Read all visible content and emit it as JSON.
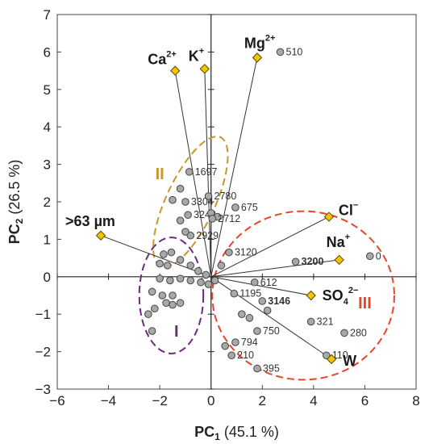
{
  "chart_data": {
    "type": "scatter",
    "subtype": "pca-biplot",
    "xlabel": {
      "main": "PC",
      "sub": "1",
      "rest": " (45.1 %)"
    },
    "ylabel": {
      "main": "PC",
      "sub": "2",
      "rest": " (26.5 %)"
    },
    "xlim": [
      -6,
      8
    ],
    "ylim": [
      -3,
      7
    ],
    "xticks": [
      -6,
      -4,
      -2,
      0,
      2,
      4,
      6,
      8
    ],
    "yticks": [
      -3,
      -2,
      -1,
      0,
      1,
      2,
      3,
      4,
      5,
      6,
      7
    ],
    "grid": false,
    "colors": {
      "point_fill": "#a8a8a8",
      "point_stroke": "#444444",
      "loading_fill": "#f5c400",
      "loading_stroke": "#5a4a00",
      "vector_stroke": "#333333",
      "group_I": "#6b2a7a",
      "group_II": "#c8962a",
      "group_III": "#e8442a"
    },
    "loadings": [
      {
        "name": "Ca",
        "sup": "2+",
        "x": -1.4,
        "y": 5.5
      },
      {
        "name": "K",
        "sup": "+",
        "x": -0.25,
        "y": 5.55
      },
      {
        "name": "Mg",
        "sup": "2+",
        "x": 1.8,
        "y": 5.85
      },
      {
        "name": ">63 µm",
        "sup": "",
        "x": -4.3,
        "y": 1.1
      },
      {
        "name": "Cl",
        "sup": "−",
        "x": 4.6,
        "y": 1.6
      },
      {
        "name": "Na",
        "sup": "+",
        "x": 5.0,
        "y": 0.45
      },
      {
        "name": "SO",
        "sub": "4",
        "sup": "2−",
        "x": 3.9,
        "y": -0.5
      },
      {
        "name": "W",
        "sup": "",
        "x": 4.7,
        "y": -2.2
      }
    ],
    "scores": [
      {
        "x": 2.7,
        "y": 6.0,
        "label": "510"
      },
      {
        "x": -0.85,
        "y": 2.8,
        "label": "1697"
      },
      {
        "x": -0.1,
        "y": 2.15,
        "label": "2780"
      },
      {
        "x": -1.2,
        "y": 2.35
      },
      {
        "x": -1.0,
        "y": 2.0,
        "label": "3304"
      },
      {
        "x": -1.5,
        "y": 2.05
      },
      {
        "x": 0.95,
        "y": 1.85,
        "label": "675"
      },
      {
        "x": -0.9,
        "y": 1.65,
        "label": "3248"
      },
      {
        "x": 0.0,
        "y": 1.7
      },
      {
        "x": 0.25,
        "y": 1.6
      },
      {
        "x": -1.2,
        "y": 1.5
      },
      {
        "x": 0.05,
        "y": 1.55,
        "label": "2712"
      },
      {
        "x": -0.8,
        "y": 1.1,
        "label": "2929"
      },
      {
        "x": -1.0,
        "y": 1.2
      },
      {
        "x": 0.7,
        "y": 0.65,
        "label": "3120"
      },
      {
        "x": -1.55,
        "y": 0.65
      },
      {
        "x": -1.85,
        "y": 0.6
      },
      {
        "x": -1.2,
        "y": 0.45
      },
      {
        "x": -2.0,
        "y": 0.35
      },
      {
        "x": -1.7,
        "y": 0.3
      },
      {
        "x": 0.4,
        "y": 0.3
      },
      {
        "x": -0.8,
        "y": 0.3
      },
      {
        "x": -0.5,
        "y": 0.15
      },
      {
        "x": -0.2,
        "y": 0.05
      },
      {
        "x": -2.0,
        "y": -0.05
      },
      {
        "x": -1.6,
        "y": -0.1
      },
      {
        "x": -1.2,
        "y": -0.05
      },
      {
        "x": -0.8,
        "y": -0.1
      },
      {
        "x": -0.4,
        "y": -0.15
      },
      {
        "x": -0.1,
        "y": -0.2
      },
      {
        "x": -2.3,
        "y": -0.4
      },
      {
        "x": -1.9,
        "y": -0.5
      },
      {
        "x": -1.5,
        "y": -0.5
      },
      {
        "x": -1.75,
        "y": -0.7
      },
      {
        "x": -1.5,
        "y": -0.75
      },
      {
        "x": -1.2,
        "y": -0.7
      },
      {
        "x": -2.2,
        "y": -0.85
      },
      {
        "x": -2.45,
        "y": -1.0
      },
      {
        "x": -2.3,
        "y": -1.45
      },
      {
        "x": 0.15,
        "y": -0.1
      },
      {
        "x": 3.3,
        "y": 0.4,
        "label": "3200",
        "bold": true
      },
      {
        "x": 6.2,
        "y": 0.55,
        "label": "0"
      },
      {
        "x": 1.7,
        "y": -0.15,
        "label": "612"
      },
      {
        "x": 0.9,
        "y": -0.45,
        "label": "1195"
      },
      {
        "x": 2.0,
        "y": -0.65,
        "label": "3146",
        "bold": true
      },
      {
        "x": 2.2,
        "y": -0.9
      },
      {
        "x": 1.2,
        "y": -1.0
      },
      {
        "x": 1.5,
        "y": -1.1
      },
      {
        "x": 3.9,
        "y": -1.2,
        "label": "321"
      },
      {
        "x": 1.8,
        "y": -1.45,
        "label": "750"
      },
      {
        "x": 5.2,
        "y": -1.5,
        "label": "280"
      },
      {
        "x": 0.55,
        "y": -1.85
      },
      {
        "x": 0.95,
        "y": -1.75,
        "label": "794"
      },
      {
        "x": 0.8,
        "y": -2.1,
        "label": "210"
      },
      {
        "x": 4.5,
        "y": -2.1,
        "label": "110"
      },
      {
        "x": 1.8,
        "y": -2.45,
        "label": "395"
      }
    ],
    "groups": [
      {
        "label": "I",
        "cx": -1.55,
        "cy": -0.5,
        "rx": 1.25,
        "ry": 1.55,
        "angle": 0
      },
      {
        "label": "II",
        "cx": -0.8,
        "cy": 2.0,
        "rx": 0.95,
        "ry": 1.9,
        "angle": 25
      },
      {
        "label": "III",
        "cx": 3.6,
        "cy": -0.5,
        "rx": 3.55,
        "ry": 2.25,
        "angle": 0
      }
    ],
    "group_label_pos": [
      {
        "label": "I",
        "x": -1.35,
        "y": -1.6,
        "colorKey": "group_I"
      },
      {
        "label": "II",
        "x": -2.0,
        "y": 2.6,
        "colorKey": "group_II"
      },
      {
        "label": "III",
        "x": 6.0,
        "y": -0.85,
        "colorKey": "group_III"
      }
    ]
  }
}
